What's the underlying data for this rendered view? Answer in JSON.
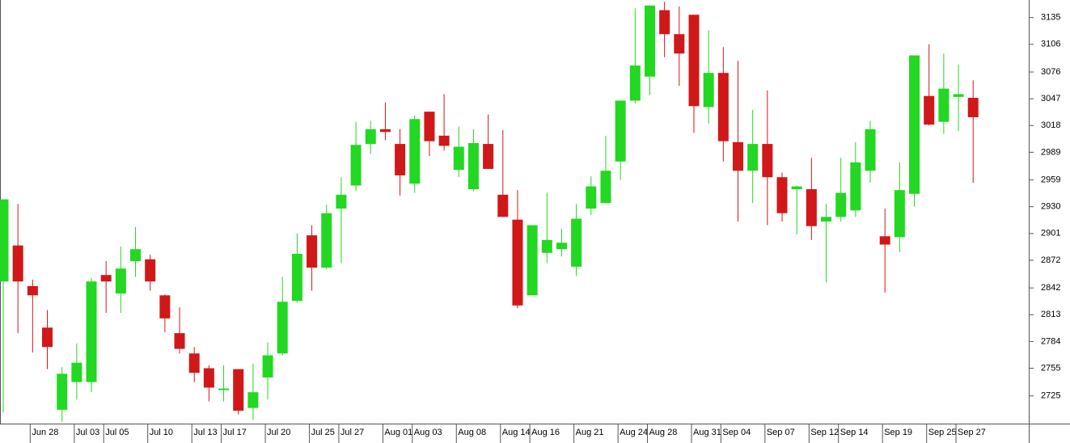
{
  "chart_data": {
    "type": "candlestick",
    "categories": [
      null,
      null,
      "Jun 28",
      null,
      null,
      "Jul 03",
      null,
      "Jul 05",
      null,
      null,
      "Jul 10",
      null,
      null,
      "Jul 13",
      null,
      "Jul 17",
      null,
      null,
      "Jul 20",
      null,
      null,
      "Jul 25",
      null,
      "Jul 27",
      null,
      null,
      "Aug 01",
      null,
      "Aug 03",
      null,
      null,
      "Aug 08",
      null,
      null,
      "Aug 14",
      null,
      "Aug 16",
      null,
      null,
      "Aug 21",
      null,
      null,
      "Aug 24",
      null,
      "Aug 28",
      null,
      null,
      "Aug 31",
      null,
      "Sep 04",
      null,
      null,
      "Sep 07",
      null,
      null,
      "Sep 12",
      null,
      "Sep 14",
      null,
      null,
      "Sep 19",
      null,
      null,
      "Sep 25",
      null,
      "Sep 27",
      null
    ],
    "open": [
      2849,
      2888,
      2844,
      2799,
      2710,
      2740,
      2740,
      2856,
      2836,
      2871,
      2873,
      2834,
      2793,
      2771,
      2755,
      2733,
      2754,
      2712,
      2745,
      2771,
      2828,
      2899,
      2864,
      2928,
      2953,
      2998,
      3014,
      2998,
      2955,
      3033,
      3007,
      2970,
      2949,
      2998,
      2943,
      2916,
      2834,
      2880,
      2884,
      2865,
      2928,
      2934,
      2979,
      3045,
      3071,
      3143,
      3117,
      3138,
      3038,
      3075,
      3000,
      2969,
      2998,
      2962,
      2949,
      2949,
      2914,
      2919,
      2926,
      2969,
      2898,
      2897,
      2944,
      3050,
      3022,
      3049,
      3048
    ],
    "high": [
      2938,
      2933,
      2851,
      2818,
      2756,
      2782,
      2853,
      2871,
      2887,
      2908,
      2878,
      2835,
      2821,
      2778,
      2758,
      2758,
      2754,
      2760,
      2783,
      2854,
      2901,
      2910,
      2932,
      2962,
      3022,
      3023,
      3043,
      3014,
      3029,
      3033,
      3052,
      3017,
      3014,
      3030,
      3013,
      2948,
      2910,
      2945,
      2906,
      2933,
      2963,
      3007,
      3045,
      3145,
      3148,
      3152,
      3147,
      3138,
      3121,
      3103,
      3088,
      3035,
      3056,
      2967,
      2953,
      2983,
      2933,
      2983,
      3000,
      3023,
      2928,
      2978,
      3094,
      3106,
      3096,
      3084,
      3067
    ],
    "low": [
      2707,
      2793,
      2772,
      2754,
      2697,
      2721,
      2729,
      2815,
      2815,
      2854,
      2839,
      2794,
      2771,
      2740,
      2719,
      2719,
      2705,
      2699,
      2721,
      2769,
      2826,
      2839,
      2862,
      2869,
      2947,
      2987,
      3002,
      2942,
      2945,
      2985,
      2991,
      2962,
      2947,
      2971,
      2919,
      2820,
      2834,
      2869,
      2876,
      2855,
      2921,
      2934,
      2959,
      3042,
      3051,
      3092,
      3061,
      3010,
      3020,
      2979,
      2914,
      2934,
      2910,
      2914,
      2900,
      2894,
      2848,
      2914,
      2919,
      2956,
      2837,
      2881,
      2930,
      3018,
      3009,
      3012,
      2956
    ],
    "close": [
      2938,
      2849,
      2834,
      2778,
      2749,
      2761,
      2849,
      2849,
      2863,
      2884,
      2849,
      2809,
      2776,
      2750,
      2734,
      2733,
      2709,
      2729,
      2769,
      2827,
      2879,
      2864,
      2923,
      2943,
      2997,
      3014,
      3011,
      2964,
      3025,
      3001,
      2996,
      2995,
      2999,
      2971,
      2919,
      2823,
      2910,
      2894,
      2891,
      2917,
      2952,
      2969,
      3045,
      3083,
      3148,
      3117,
      3096,
      3039,
      3075,
      3001,
      2969,
      2998,
      2962,
      2923,
      2952,
      2909,
      2919,
      2945,
      2978,
      3014,
      2889,
      2948,
      3094,
      3019,
      3058,
      3052,
      3027
    ],
    "up_color": "#22d822",
    "down_color": "#d01818",
    "ylim": [
      2695,
      3154
    ],
    "yticks": [
      2725,
      2755,
      2784,
      2813,
      2842,
      2872,
      2901,
      2930,
      2959,
      2989,
      3018,
      3047,
      3076,
      3106,
      3135
    ]
  }
}
